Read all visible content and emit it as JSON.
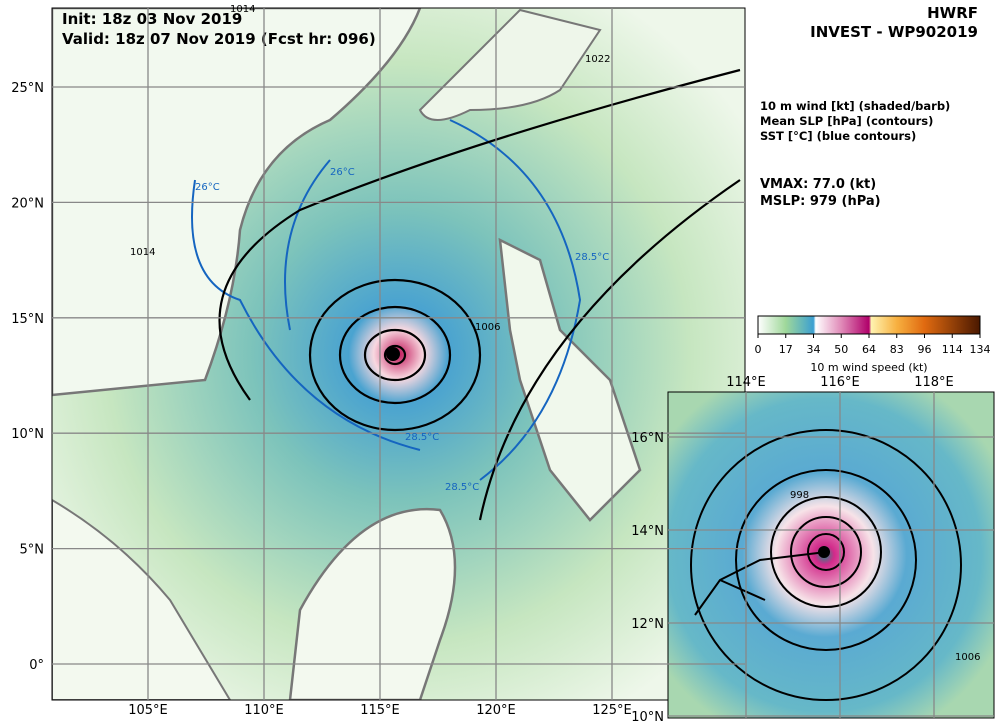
{
  "header": {
    "init": "Init:   18z 03 Nov 2019",
    "valid": "Valid: 18z 07 Nov 2019 (Fcst hr: 096)",
    "model": "HWRF",
    "storm": "INVEST - WP902019"
  },
  "legend": {
    "lines": [
      "10 m wind [kt] (shaded/barb)",
      "Mean SLP [hPa] (contours)",
      "SST [°C] (blue contours)"
    ],
    "vmax": "VMAX:  77.0 (kt)",
    "mslp": "MSLP:  979 (hPa)"
  },
  "colorbar": {
    "ticks": [
      0,
      17,
      34,
      50,
      64,
      83,
      96,
      114,
      134
    ],
    "label": "10 m wind speed (kt)"
  },
  "map": {
    "lon_labels": [
      "105°E",
      "110°E",
      "115°E",
      "120°E",
      "125°E"
    ],
    "lat_labels": [
      "25°N",
      "20°N",
      "15°N",
      "10°N",
      "5°N",
      "0°"
    ],
    "slp_labels": [
      "1014",
      "1014",
      "1006",
      "1022"
    ],
    "sst_labels": [
      "26°C",
      "26°C",
      "28.5°C",
      "28.5°C",
      "28.5°C"
    ]
  },
  "inset": {
    "lon_labels": [
      "114°E",
      "116°E",
      "118°E"
    ],
    "lat_labels": [
      "16°N",
      "14°N",
      "12°N",
      "10°N"
    ],
    "slp_labels": [
      "998",
      "1006"
    ]
  }
}
